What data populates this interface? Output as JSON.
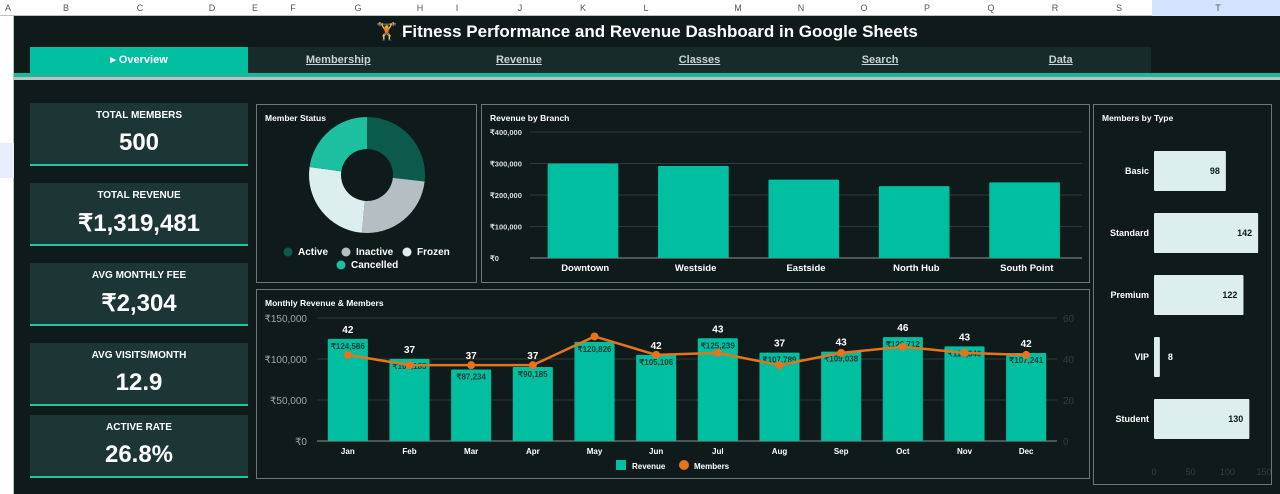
{
  "columns": [
    "A",
    "B",
    "C",
    "D",
    "E",
    "F",
    "G",
    "H",
    "I",
    "J",
    "K",
    "L",
    "M",
    "N",
    "O",
    "P",
    "Q",
    "R",
    "S",
    "T"
  ],
  "title": "🏋 Fitness Performance and Revenue Dashboard in Google Sheets",
  "tabs": [
    {
      "label": "▸ Overview",
      "active": true
    },
    {
      "label": "Membership"
    },
    {
      "label": "Revenue"
    },
    {
      "label": "Classes"
    },
    {
      "label": "Search"
    },
    {
      "label": "Data"
    }
  ],
  "kpis": [
    {
      "label": "TOTAL MEMBERS",
      "value": "500"
    },
    {
      "label": "TOTAL REVENUE",
      "value": "₹1,319,481"
    },
    {
      "label": "AVG MONTHLY FEE",
      "value": "₹2,304"
    },
    {
      "label": "AVG VISITS/MONTH",
      "value": "12.9"
    },
    {
      "label": "ACTIVE RATE",
      "value": "26.8%"
    }
  ],
  "colors": {
    "accent": "#00bfa0",
    "background": "#0f1b1b",
    "card": "#1c3535",
    "line": "#e8731a"
  },
  "chart_data": [
    {
      "type": "pie",
      "title": "Member Status",
      "donut": true,
      "legend": "bottom",
      "categories": [
        "Active",
        "Inactive",
        "Frozen",
        "Cancelled"
      ],
      "values": [
        134,
        123,
        129,
        114
      ],
      "colors": [
        "#0b5a4c",
        "#b5bec2",
        "#dceeed",
        "#1cbf9f"
      ]
    },
    {
      "type": "bar",
      "title": "Revenue by Branch",
      "categories": [
        "Downtown",
        "Westside",
        "Eastside",
        "North Hub",
        "South Point"
      ],
      "values": [
        300000,
        292000,
        249000,
        228000,
        240000
      ],
      "ylim": [
        0,
        400000
      ],
      "yticks": [
        "₹0",
        "₹100,000",
        "₹200,000",
        "₹300,000",
        "₹400,000"
      ],
      "grid": true
    },
    {
      "type": "bar+line",
      "title": "Monthly Revenue & Members",
      "categories": [
        "Jan",
        "Feb",
        "Mar",
        "Apr",
        "May",
        "Jun",
        "Jul",
        "Aug",
        "Sep",
        "Oct",
        "Nov",
        "Dec"
      ],
      "series": [
        {
          "name": "Revenue",
          "values": [
            124586,
            100185,
            87234,
            90185,
            120826,
            105106,
            125239,
            107789,
            109038,
            126712,
            115340,
            107241
          ],
          "labels": [
            "₹124,586",
            "₹100,185",
            "₹87,234",
            "₹90,185",
            "₹120,826",
            "₹105,106",
            "₹125,239",
            "₹107,789",
            "₹109,038",
            "₹126,712",
            "₹115,340",
            "₹107,241"
          ]
        },
        {
          "name": "Members",
          "values": [
            42,
            37,
            37,
            37,
            51,
            42,
            43,
            37,
            43,
            46,
            43,
            42
          ],
          "labels": [
            "42",
            "37",
            "37",
            "37",
            "",
            "42",
            "43",
            "37",
            "43",
            "46",
            "43",
            "42"
          ]
        }
      ],
      "ylim": [
        0,
        150000
      ],
      "yticks": [
        "₹0",
        "₹50,000",
        "₹100,000",
        "₹150,000"
      ],
      "y2lim": [
        0,
        60
      ],
      "y2ticks": [
        "0",
        "20",
        "40",
        "60"
      ],
      "legend": "bottom",
      "grid": true
    },
    {
      "type": "bar",
      "orientation": "horizontal",
      "title": "Members by Type",
      "categories": [
        "Basic",
        "Standard",
        "Premium",
        "VIP",
        "Student"
      ],
      "values": [
        98,
        142,
        122,
        8,
        130
      ],
      "xlim": [
        0,
        150
      ],
      "xticks": [
        "0",
        "50",
        "100",
        "150"
      ]
    }
  ]
}
